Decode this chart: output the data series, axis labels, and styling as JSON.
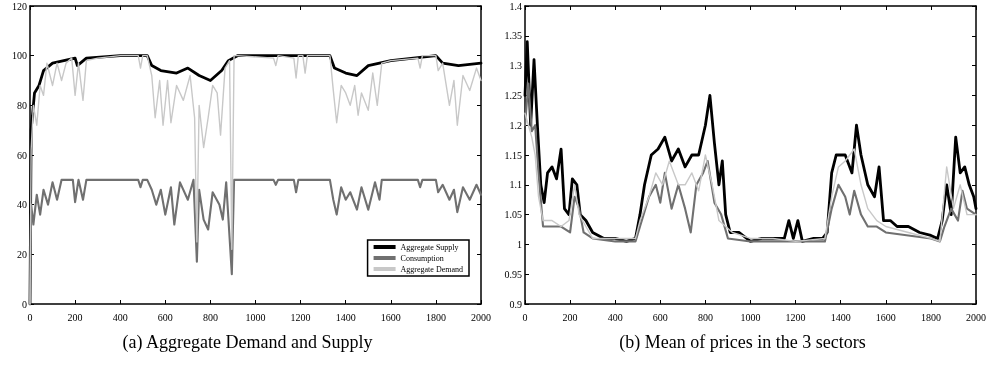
{
  "chart_data": [
    {
      "type": "line",
      "xlim": [
        0,
        2000
      ],
      "xticks": [
        0,
        200,
        400,
        600,
        800,
        1000,
        1200,
        1400,
        1600,
        1800,
        2000
      ],
      "ylim": [
        0,
        120
      ],
      "yticks": [
        0,
        20,
        40,
        60,
        80,
        100,
        120
      ],
      "grid": false,
      "legend": "bottom right",
      "marker": "none",
      "line_style": "solid",
      "annotations": [
        "(a) Aggregate Demand and Supply"
      ],
      "series": [
        {
          "name": "Aggregate Supply",
          "color": "#000000",
          "x": [
            0,
            5,
            20,
            40,
            60,
            100,
            200,
            210,
            250,
            400,
            520,
            540,
            580,
            650,
            700,
            750,
            800,
            850,
            880,
            920,
            1330,
            1350,
            1400,
            1450,
            1500,
            1600,
            1800,
            1830,
            1900,
            2000
          ],
          "values": [
            0,
            70,
            85,
            88,
            94,
            97,
            99,
            96,
            99,
            100,
            100,
            96,
            94,
            93,
            95,
            92,
            90,
            94,
            98,
            100,
            100,
            95,
            93,
            92,
            96,
            98,
            100,
            97,
            96,
            97
          ]
        },
        {
          "name": "Consumption",
          "color": "#707070",
          "x": [
            0,
            5,
            15,
            30,
            45,
            60,
            80,
            100,
            120,
            140,
            190,
            200,
            215,
            235,
            250,
            480,
            490,
            500,
            520,
            540,
            560,
            580,
            600,
            625,
            640,
            665,
            700,
            725,
            740,
            750,
            770,
            790,
            810,
            840,
            855,
            870,
            895,
            905,
            1080,
            1090,
            1100,
            1170,
            1180,
            1190,
            1330,
            1345,
            1360,
            1380,
            1400,
            1420,
            1450,
            1470,
            1500,
            1530,
            1550,
            1560,
            1720,
            1730,
            1740,
            1800,
            1810,
            1830,
            1860,
            1880,
            1895,
            1920,
            1950,
            1980,
            2000
          ],
          "values": [
            0,
            40,
            32,
            44,
            36,
            46,
            40,
            49,
            42,
            50,
            50,
            41,
            50,
            42,
            50,
            50,
            47,
            50,
            50,
            46,
            40,
            46,
            36,
            47,
            32,
            49,
            42,
            50,
            17,
            46,
            34,
            30,
            45,
            40,
            34,
            49,
            12,
            50,
            50,
            48,
            50,
            50,
            45,
            50,
            50,
            42,
            36,
            47,
            42,
            45,
            38,
            47,
            38,
            49,
            42,
            50,
            50,
            47,
            50,
            50,
            45,
            48,
            42,
            46,
            37,
            47,
            42,
            48,
            44
          ]
        },
        {
          "name": "Aggregate Demand",
          "color": "#c8c8c8",
          "x": [
            0,
            5,
            15,
            30,
            45,
            60,
            75,
            100,
            120,
            140,
            160,
            185,
            200,
            215,
            235,
            250,
            300,
            400,
            480,
            490,
            500,
            520,
            540,
            555,
            575,
            590,
            610,
            625,
            650,
            680,
            710,
            730,
            740,
            750,
            770,
            790,
            810,
            830,
            845,
            865,
            885,
            895,
            905,
            920,
            1080,
            1090,
            1100,
            1170,
            1180,
            1190,
            1210,
            1220,
            1230,
            1330,
            1345,
            1360,
            1380,
            1400,
            1420,
            1440,
            1455,
            1470,
            1500,
            1520,
            1540,
            1560,
            1600,
            1720,
            1730,
            1740,
            1800,
            1810,
            1830,
            1860,
            1880,
            1895,
            1920,
            1950,
            1980,
            2000
          ],
          "values": [
            0,
            62,
            80,
            72,
            88,
            84,
            97,
            88,
            97,
            90,
            97,
            99,
            84,
            97,
            82,
            98,
            99,
            100,
            100,
            95,
            100,
            100,
            92,
            75,
            90,
            72,
            90,
            73,
            88,
            82,
            92,
            75,
            25,
            80,
            63,
            75,
            88,
            85,
            68,
            95,
            98,
            22,
            100,
            100,
            99,
            96,
            100,
            99,
            91,
            100,
            100,
            93,
            100,
            100,
            86,
            73,
            88,
            85,
            80,
            88,
            76,
            85,
            78,
            93,
            80,
            97,
            98,
            99,
            95,
            100,
            100,
            94,
            97,
            80,
            90,
            72,
            92,
            86,
            95,
            90
          ]
        }
      ]
    },
    {
      "type": "line",
      "xlim": [
        0,
        2000
      ],
      "xticks": [
        0,
        200,
        400,
        600,
        800,
        1000,
        1200,
        1400,
        1600,
        1800,
        2000
      ],
      "ylim": [
        0.9,
        1.4
      ],
      "yticks": [
        0.9,
        0.95,
        1,
        1.05,
        1.1,
        1.15,
        1.2,
        1.25,
        1.3,
        1.35,
        1.4
      ],
      "grid": false,
      "marker": "none",
      "line_style": "solid",
      "annotations": [
        "(b) Mean of prices in the 3 sectors"
      ],
      "series": [
        {
          "color": "#000000",
          "x": [
            0,
            10,
            25,
            40,
            55,
            70,
            85,
            100,
            120,
            140,
            160,
            175,
            195,
            210,
            230,
            245,
            270,
            300,
            350,
            400,
            450,
            490,
            510,
            530,
            560,
            590,
            620,
            650,
            680,
            710,
            740,
            770,
            800,
            820,
            840,
            860,
            875,
            890,
            910,
            950,
            1000,
            1050,
            1100,
            1150,
            1170,
            1190,
            1210,
            1230,
            1280,
            1320,
            1340,
            1360,
            1380,
            1420,
            1450,
            1470,
            1490,
            1520,
            1550,
            1570,
            1590,
            1620,
            1650,
            1700,
            1750,
            1800,
            1830,
            1850,
            1870,
            1890,
            1910,
            1930,
            1950,
            1970,
            1990,
            2000
          ],
          "values": [
            1.25,
            1.34,
            1.2,
            1.31,
            1.2,
            1.1,
            1.07,
            1.12,
            1.13,
            1.11,
            1.16,
            1.06,
            1.05,
            1.11,
            1.1,
            1.05,
            1.04,
            1.02,
            1.01,
            1.01,
            1.005,
            1.01,
            1.05,
            1.1,
            1.15,
            1.16,
            1.18,
            1.14,
            1.16,
            1.13,
            1.15,
            1.15,
            1.2,
            1.25,
            1.17,
            1.1,
            1.14,
            1.05,
            1.02,
            1.02,
            1.005,
            1.01,
            1.01,
            1.01,
            1.04,
            1.01,
            1.04,
            1.005,
            1.01,
            1.01,
            1.02,
            1.12,
            1.15,
            1.15,
            1.12,
            1.2,
            1.15,
            1.1,
            1.08,
            1.13,
            1.04,
            1.04,
            1.03,
            1.03,
            1.02,
            1.015,
            1.01,
            1.04,
            1.1,
            1.05,
            1.18,
            1.12,
            1.13,
            1.1,
            1.08,
            1.06
          ]
        },
        {
          "color": "#707070",
          "x": [
            0,
            15,
            30,
            45,
            60,
            80,
            120,
            160,
            200,
            220,
            240,
            260,
            300,
            400,
            490,
            510,
            550,
            580,
            600,
            620,
            650,
            680,
            710,
            735,
            760,
            790,
            810,
            840,
            870,
            900,
            1000,
            1100,
            1200,
            1330,
            1360,
            1390,
            1420,
            1440,
            1460,
            1490,
            1520,
            1560,
            1600,
            1700,
            1800,
            1840,
            1860,
            1890,
            1920,
            1940,
            1960,
            2000
          ],
          "values": [
            1.2,
            1.27,
            1.19,
            1.2,
            1.12,
            1.03,
            1.03,
            1.03,
            1.02,
            1.08,
            1.06,
            1.02,
            1.01,
            1.005,
            1.005,
            1.03,
            1.08,
            1.1,
            1.07,
            1.12,
            1.06,
            1.1,
            1.06,
            1.02,
            1.1,
            1.12,
            1.14,
            1.07,
            1.05,
            1.01,
            1.005,
            1.005,
            1.005,
            1.005,
            1.06,
            1.1,
            1.08,
            1.05,
            1.09,
            1.05,
            1.03,
            1.03,
            1.02,
            1.015,
            1.01,
            1.005,
            1.03,
            1.06,
            1.04,
            1.09,
            1.06,
            1.05
          ]
        },
        {
          "color": "#c8c8c8",
          "x": [
            0,
            15,
            30,
            45,
            60,
            80,
            120,
            160,
            195,
            220,
            240,
            270,
            300,
            400,
            490,
            510,
            550,
            580,
            610,
            640,
            680,
            710,
            740,
            770,
            800,
            830,
            860,
            890,
            920,
            1000,
            1100,
            1200,
            1330,
            1360,
            1390,
            1420,
            1460,
            1490,
            1520,
            1560,
            1600,
            1700,
            1800,
            1840,
            1870,
            1900,
            1930,
            1960,
            2000
          ],
          "values": [
            1.22,
            1.2,
            1.18,
            1.15,
            1.08,
            1.04,
            1.04,
            1.03,
            1.04,
            1.1,
            1.05,
            1.03,
            1.01,
            1.01,
            1.01,
            1.04,
            1.08,
            1.12,
            1.1,
            1.14,
            1.1,
            1.1,
            1.12,
            1.09,
            1.15,
            1.1,
            1.04,
            1.03,
            1.02,
            1.01,
            1.01,
            1.005,
            1.01,
            1.08,
            1.13,
            1.14,
            1.16,
            1.1,
            1.06,
            1.04,
            1.03,
            1.02,
            1.01,
            1.005,
            1.13,
            1.06,
            1.1,
            1.05,
            1.05
          ]
        }
      ]
    }
  ]
}
